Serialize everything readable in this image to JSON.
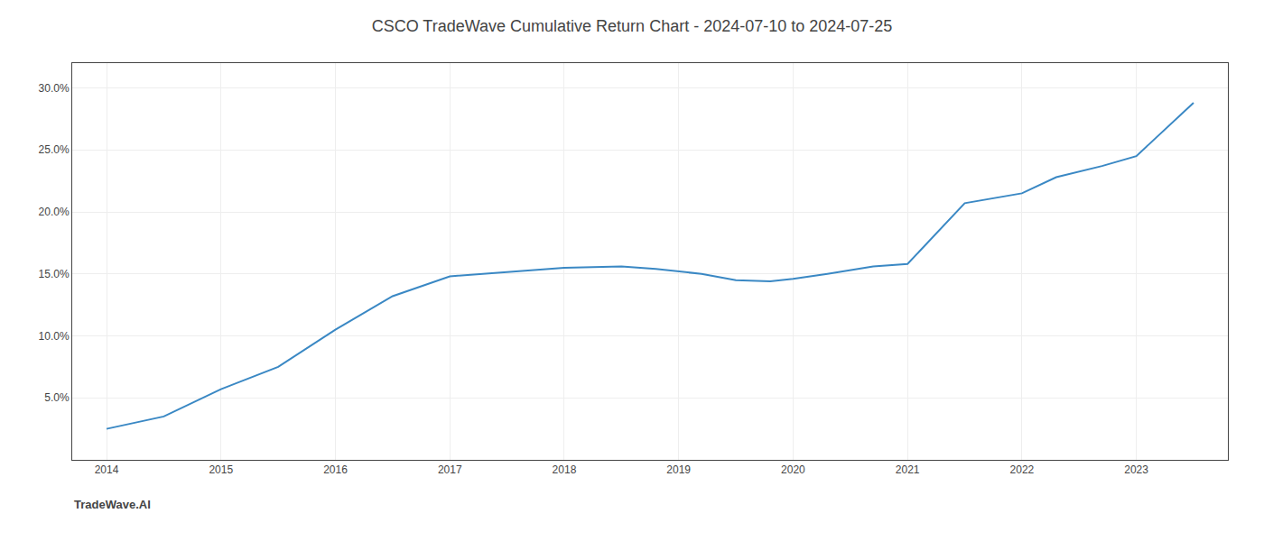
{
  "chart_data": {
    "type": "line",
    "title": "CSCO TradeWave Cumulative Return Chart - 2024-07-10 to 2024-07-25",
    "annotations": [
      "TradeWave.AI"
    ],
    "x": [
      2014.0,
      2014.5,
      2015.0,
      2015.5,
      2016.0,
      2016.5,
      2017.0,
      2017.3,
      2017.7,
      2018.0,
      2018.5,
      2018.8,
      2019.2,
      2019.5,
      2019.8,
      2020.0,
      2020.3,
      2020.7,
      2021.0,
      2021.5,
      2022.0,
      2022.3,
      2022.7,
      2023.0,
      2023.5
    ],
    "values": [
      2.5,
      3.5,
      5.7,
      7.5,
      10.5,
      13.2,
      14.8,
      15.0,
      15.3,
      15.5,
      15.6,
      15.4,
      15.0,
      14.5,
      14.4,
      14.6,
      15.0,
      15.6,
      15.8,
      20.7,
      21.5,
      22.8,
      23.7,
      24.5,
      28.8
    ],
    "color": "#3a88c4",
    "xlim": [
      2013.7,
      2023.8
    ],
    "xticks": [
      2014,
      2015,
      2016,
      2017,
      2018,
      2019,
      2020,
      2021,
      2022,
      2023
    ],
    "ylim": [
      0,
      32
    ],
    "yticks": [
      {
        "value": 5.0,
        "label": "5.0%"
      },
      {
        "value": 10.0,
        "label": "10.0%"
      },
      {
        "value": 15.0,
        "label": "15.0%"
      },
      {
        "value": 20.0,
        "label": "20.0%"
      },
      {
        "value": 25.0,
        "label": "25.0%"
      },
      {
        "value": 30.0,
        "label": "30.0%"
      }
    ],
    "grid": true
  }
}
